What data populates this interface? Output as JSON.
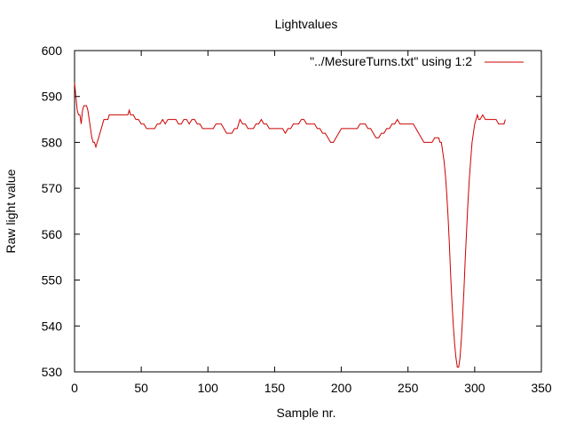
{
  "chart_data": {
    "type": "line",
    "title": "Lightvalues",
    "xlabel": "Sample nr.",
    "ylabel": "Raw light value",
    "xlim": [
      0,
      350
    ],
    "ylim": [
      530,
      600
    ],
    "xticks": [
      0,
      50,
      100,
      150,
      200,
      250,
      300,
      350
    ],
    "yticks": [
      530,
      540,
      550,
      560,
      570,
      580,
      590,
      600
    ],
    "xtick_labels": [
      "0",
      "50",
      "100",
      "150",
      "200",
      "250",
      "300",
      "350"
    ],
    "ytick_labels": [
      "530",
      "540",
      "550",
      "560",
      "570",
      "580",
      "590",
      "600"
    ],
    "grid": false,
    "legend_position": "top-right",
    "series": [
      {
        "name": "\"../MesureTurns.txt\" using 1:2",
        "color": "#cc0000",
        "x": [
          0,
          1,
          2,
          3,
          4,
          5,
          6,
          7,
          8,
          9,
          10,
          11,
          12,
          13,
          14,
          15,
          16,
          17,
          18,
          19,
          20,
          21,
          22,
          23,
          24,
          25,
          26,
          27,
          28,
          29,
          30,
          32,
          34,
          36,
          38,
          40,
          41,
          42,
          43,
          44,
          46,
          48,
          50,
          52,
          54,
          56,
          58,
          60,
          62,
          64,
          66,
          68,
          70,
          72,
          74,
          76,
          78,
          80,
          82,
          84,
          86,
          88,
          90,
          92,
          94,
          96,
          98,
          100,
          102,
          104,
          106,
          108,
          110,
          112,
          114,
          116,
          118,
          120,
          122,
          124,
          126,
          128,
          130,
          132,
          134,
          136,
          138,
          140,
          142,
          144,
          146,
          148,
          150,
          152,
          154,
          156,
          158,
          160,
          162,
          164,
          166,
          168,
          170,
          172,
          174,
          176,
          178,
          180,
          182,
          184,
          186,
          188,
          190,
          192,
          194,
          196,
          198,
          200,
          202,
          204,
          206,
          208,
          210,
          212,
          214,
          216,
          218,
          220,
          222,
          224,
          226,
          228,
          230,
          232,
          234,
          236,
          238,
          240,
          242,
          244,
          246,
          248,
          250,
          252,
          254,
          256,
          258,
          260,
          262,
          264,
          266,
          268,
          270,
          271,
          272,
          273,
          274,
          275,
          276,
          277,
          278,
          279,
          280,
          281,
          282,
          283,
          284,
          285,
          286,
          287,
          288,
          289,
          290,
          291,
          292,
          293,
          294,
          295,
          296,
          297,
          298,
          299,
          300,
          301,
          302,
          303,
          304,
          306,
          308,
          310,
          312,
          314,
          316,
          318,
          320,
          322,
          323
        ],
        "values": [
          593,
          590,
          587,
          586,
          586,
          584,
          587,
          588,
          588,
          588,
          587,
          585,
          583,
          581,
          580,
          580,
          579,
          580,
          581,
          582,
          583,
          584,
          585,
          585,
          585,
          585,
          586,
          586,
          586,
          586,
          586,
          586,
          586,
          586,
          586,
          586,
          587,
          586,
          586,
          586,
          585,
          585,
          584,
          584,
          583,
          583,
          583,
          583,
          584,
          584,
          585,
          584,
          585,
          585,
          585,
          585,
          584,
          584,
          585,
          585,
          584,
          585,
          585,
          584,
          584,
          583,
          583,
          583,
          583,
          583,
          584,
          584,
          584,
          583,
          582,
          582,
          582,
          583,
          583,
          585,
          584,
          584,
          583,
          583,
          583,
          584,
          584,
          585,
          584,
          584,
          583,
          583,
          583,
          583,
          583,
          583,
          582,
          583,
          583,
          584,
          584,
          584,
          585,
          585,
          584,
          584,
          584,
          584,
          583,
          583,
          582,
          582,
          581,
          580,
          580,
          581,
          582,
          583,
          583,
          583,
          583,
          583,
          583,
          583,
          584,
          584,
          584,
          583,
          583,
          582,
          581,
          581,
          582,
          582,
          583,
          583,
          584,
          584,
          585,
          584,
          584,
          584,
          584,
          584,
          584,
          583,
          582,
          581,
          580,
          580,
          580,
          580,
          581,
          581,
          581,
          581,
          580,
          580,
          578,
          576,
          573,
          569,
          564,
          558,
          551,
          545,
          540,
          536,
          533,
          531,
          531,
          533,
          537,
          542,
          548,
          555,
          561,
          567,
          572,
          576,
          580,
          582,
          584,
          585,
          586,
          585,
          585,
          586,
          585,
          585,
          585,
          585,
          585,
          584,
          584,
          584,
          585
        ]
      }
    ]
  }
}
